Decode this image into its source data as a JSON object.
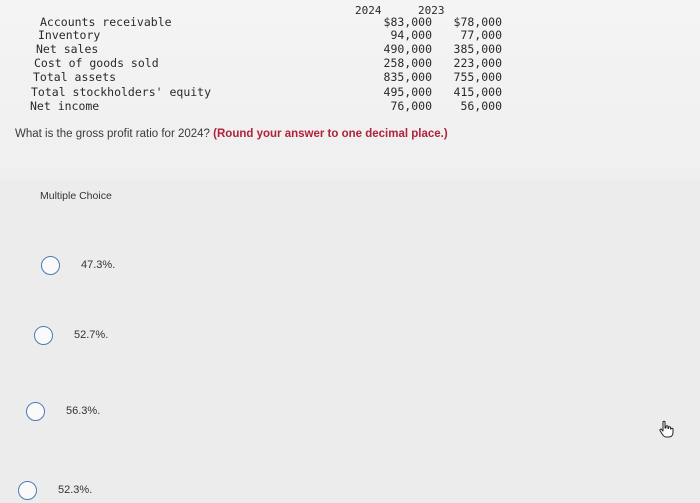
{
  "financials": {
    "year_headers": [
      "2024",
      "2023"
    ],
    "rows": [
      {
        "label": "Accounts receivable",
        "v2024": "$83,000",
        "v2023": "$78,000"
      },
      {
        "label": "Inventory",
        "v2024": "94,000",
        "v2023": "77,000"
      },
      {
        "label": "Net sales",
        "v2024": "490,000",
        "v2023": "385,000"
      },
      {
        "label": "Cost of goods sold",
        "v2024": "258,000",
        "v2023": "223,000"
      },
      {
        "label": "Total assets",
        "v2024": "835,000",
        "v2023": "755,000"
      },
      {
        "label": "Total stockholders' equity",
        "v2024": "495,000",
        "v2023": "415,000"
      },
      {
        "label": "Net income",
        "v2024": "76,000",
        "v2023": "56,000"
      }
    ]
  },
  "question": {
    "text": "What is the gross profit ratio for 2024?",
    "instruction": "(Round your answer to one decimal place.)"
  },
  "multiple_choice": {
    "title": "Multiple Choice",
    "options": [
      {
        "label": "47.3%."
      },
      {
        "label": "52.7%."
      },
      {
        "label": "56.3%."
      },
      {
        "label": "52.3%."
      }
    ]
  },
  "icons": {
    "cursor": "hand-pointer-icon"
  }
}
